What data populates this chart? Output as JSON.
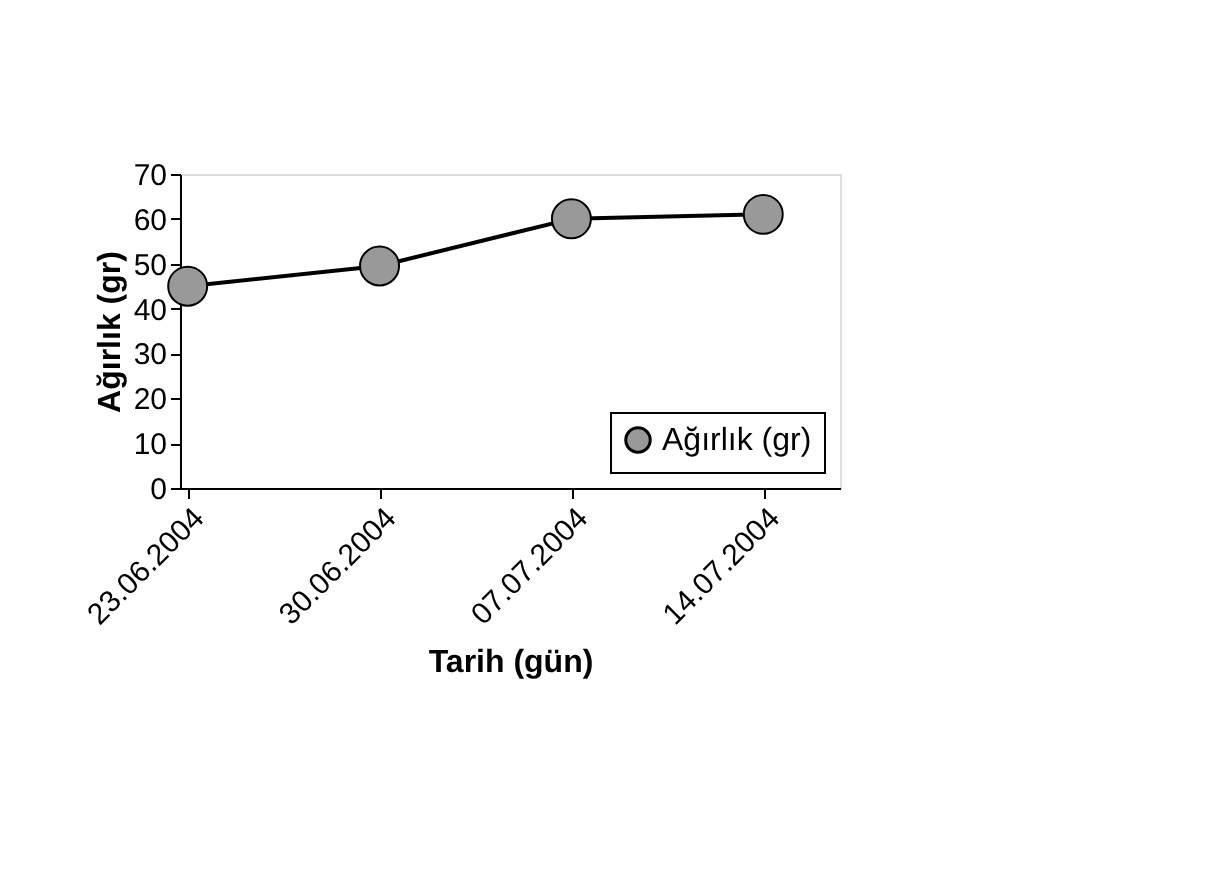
{
  "chart_data": {
    "type": "line",
    "xlabel": "Tarih (gün)",
    "ylabel": "Ağırlık (gr)",
    "categories": [
      "23.06.2004",
      "30.06.2004",
      "07.07.2004",
      "14.07.2004"
    ],
    "series": [
      {
        "name": "Ağırlık (gr)",
        "color": "#000000",
        "values": [
          45,
          49.5,
          60,
          61
        ]
      }
    ],
    "ylim": [
      0,
      70
    ],
    "yticks": [
      0,
      10,
      20,
      30,
      40,
      50,
      60,
      70
    ],
    "grid": false,
    "legend": "bottom right",
    "marker": "circle",
    "line_style": "solid"
  }
}
